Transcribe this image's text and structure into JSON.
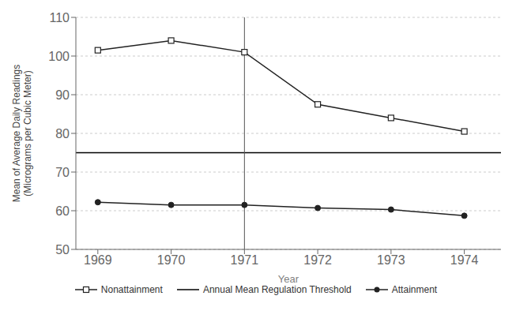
{
  "chart_data": {
    "type": "line",
    "x": [
      1969,
      1970,
      1971,
      1972,
      1973,
      1974
    ],
    "series": [
      {
        "name": "Nonattainment",
        "color": "#222222",
        "marker": "square",
        "values": [
          101.5,
          104.0,
          101.0,
          87.5,
          84.0,
          80.5
        ]
      },
      {
        "name": "Attainment",
        "color": "#222222",
        "marker": "circle",
        "values": [
          62.2,
          61.5,
          61.5,
          60.7,
          60.3,
          58.7
        ]
      }
    ],
    "threshold": {
      "name": "Annual Mean Regulation Threshold",
      "value": 75.0,
      "color": "#000000"
    },
    "vline": {
      "x": 1971,
      "color": "#555555"
    },
    "xlim": [
      1968.7,
      1974.5
    ],
    "xticks": [
      1969,
      1970,
      1971,
      1972,
      1973,
      1974
    ],
    "ylim": [
      50,
      110
    ],
    "yticks": [
      50,
      60,
      70,
      80,
      90,
      100,
      110
    ],
    "xlabel": "Year",
    "ylabel": "Mean of Average Daily Readings\n(Micrograms per Cubic Meter)",
    "grid": "y",
    "legend": "bottom"
  }
}
